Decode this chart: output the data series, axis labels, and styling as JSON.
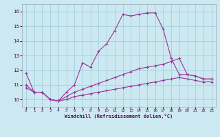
{
  "xlabel": "Windchill (Refroidissement éolien,°C)",
  "ylabel": "",
  "xlim": [
    -0.5,
    23.5
  ],
  "ylim": [
    9.5,
    16.5
  ],
  "xticks": [
    0,
    1,
    2,
    3,
    4,
    5,
    6,
    7,
    8,
    9,
    10,
    11,
    12,
    13,
    14,
    15,
    16,
    17,
    18,
    19,
    20,
    21,
    22,
    23
  ],
  "yticks": [
    10,
    11,
    12,
    13,
    14,
    15,
    16
  ],
  "bg_color": "#cce8f0",
  "grid_color": "#99ccdd",
  "line_color": "#993399",
  "figsize": [
    3.2,
    2.0
  ],
  "dpi": 100,
  "line1_x": [
    0,
    1,
    2,
    3,
    4,
    5,
    6,
    7,
    8,
    9,
    10,
    11,
    12,
    13,
    14,
    15,
    16,
    17,
    18,
    19,
    20,
    21,
    22,
    23
  ],
  "line1_y": [
    11.8,
    10.5,
    10.5,
    10.0,
    9.9,
    10.5,
    11.0,
    12.5,
    12.2,
    13.3,
    13.8,
    14.7,
    15.8,
    15.7,
    15.8,
    15.9,
    15.9,
    14.8,
    12.8,
    11.7,
    11.7,
    11.6,
    11.4,
    11.4
  ],
  "line2_x": [
    0,
    1,
    2,
    3,
    4,
    5,
    6,
    7,
    8,
    9,
    10,
    11,
    12,
    13,
    14,
    15,
    16,
    17,
    18,
    19,
    20,
    21,
    22,
    23
  ],
  "line2_y": [
    11.0,
    10.5,
    10.5,
    10.0,
    9.9,
    10.2,
    10.5,
    10.7,
    10.9,
    11.1,
    11.3,
    11.5,
    11.7,
    11.9,
    12.1,
    12.2,
    12.3,
    12.4,
    12.6,
    12.8,
    11.7,
    11.6,
    11.4,
    11.4
  ],
  "line3_x": [
    0,
    1,
    2,
    3,
    4,
    5,
    6,
    7,
    8,
    9,
    10,
    11,
    12,
    13,
    14,
    15,
    16,
    17,
    18,
    19,
    20,
    21,
    22,
    23
  ],
  "line3_y": [
    10.8,
    10.5,
    10.5,
    10.0,
    9.9,
    10.0,
    10.2,
    10.3,
    10.4,
    10.5,
    10.6,
    10.7,
    10.8,
    10.9,
    11.0,
    11.1,
    11.2,
    11.3,
    11.4,
    11.5,
    11.4,
    11.3,
    11.2,
    11.2
  ]
}
